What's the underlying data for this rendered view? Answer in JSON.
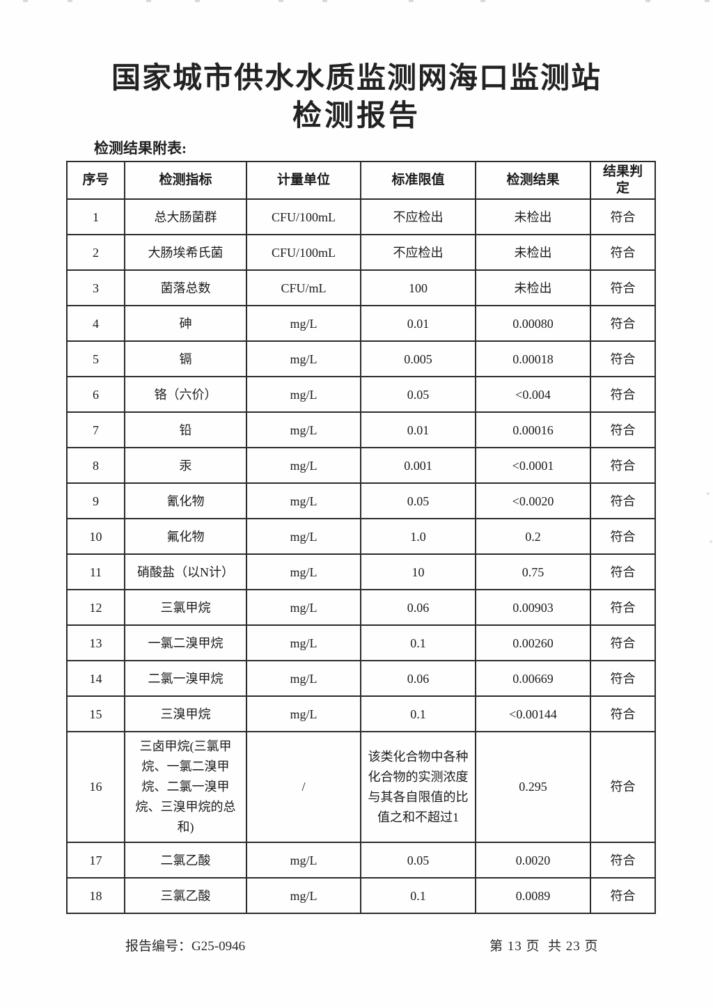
{
  "page": {
    "title_line1": "国家城市供水水质监测网海口监测站",
    "title_line2": "检测报告",
    "table_caption": "检测结果附表:",
    "footer": {
      "report_no_label": "报告编号：",
      "report_no": "G25-0946",
      "page_info": "第 13 页  共 23 页"
    }
  },
  "colors": {
    "ink": "#1b1b1b",
    "table_border": "#2b2b2b",
    "paper": "#fefefe"
  },
  "table": {
    "headers": [
      "序号",
      "检测指标",
      "计量单位",
      "标准限值",
      "检测结果",
      "结果判定"
    ],
    "rows": [
      [
        "1",
        "总大肠菌群",
        "CFU/100mL",
        "不应检出",
        "未检出",
        "符合"
      ],
      [
        "2",
        "大肠埃希氏菌",
        "CFU/100mL",
        "不应检出",
        "未检出",
        "符合"
      ],
      [
        "3",
        "菌落总数",
        "CFU/mL",
        "100",
        "未检出",
        "符合"
      ],
      [
        "4",
        "砷",
        "mg/L",
        "0.01",
        "0.00080",
        "符合"
      ],
      [
        "5",
        "镉",
        "mg/L",
        "0.005",
        "0.00018",
        "符合"
      ],
      [
        "6",
        "铬（六价）",
        "mg/L",
        "0.05",
        "<0.004",
        "符合"
      ],
      [
        "7",
        "铅",
        "mg/L",
        "0.01",
        "0.00016",
        "符合"
      ],
      [
        "8",
        "汞",
        "mg/L",
        "0.001",
        "<0.0001",
        "符合"
      ],
      [
        "9",
        "氰化物",
        "mg/L",
        "0.05",
        "<0.0020",
        "符合"
      ],
      [
        "10",
        "氟化物",
        "mg/L",
        "1.0",
        "0.2",
        "符合"
      ],
      [
        "11",
        "硝酸盐（以N计）",
        "mg/L",
        "10",
        "0.75",
        "符合"
      ],
      [
        "12",
        "三氯甲烷",
        "mg/L",
        "0.06",
        "0.00903",
        "符合"
      ],
      [
        "13",
        "一氯二溴甲烷",
        "mg/L",
        "0.1",
        "0.00260",
        "符合"
      ],
      [
        "14",
        "二氯一溴甲烷",
        "mg/L",
        "0.06",
        "0.00669",
        "符合"
      ],
      [
        "15",
        "三溴甲烷",
        "mg/L",
        "0.1",
        "<0.00144",
        "符合"
      ],
      [
        "16",
        "三卤甲烷(三氯甲烷、一氯二溴甲烷、二氯一溴甲烷、三溴甲烷的总和)",
        "/",
        "该类化合物中各种化合物的实测浓度与其各自限值的比值之和不超过1",
        "0.295",
        "符合"
      ],
      [
        "17",
        "二氯乙酸",
        "mg/L",
        "0.05",
        "0.0020",
        "符合"
      ],
      [
        "18",
        "三氯乙酸",
        "mg/L",
        "0.1",
        "0.0089",
        "符合"
      ]
    ]
  }
}
